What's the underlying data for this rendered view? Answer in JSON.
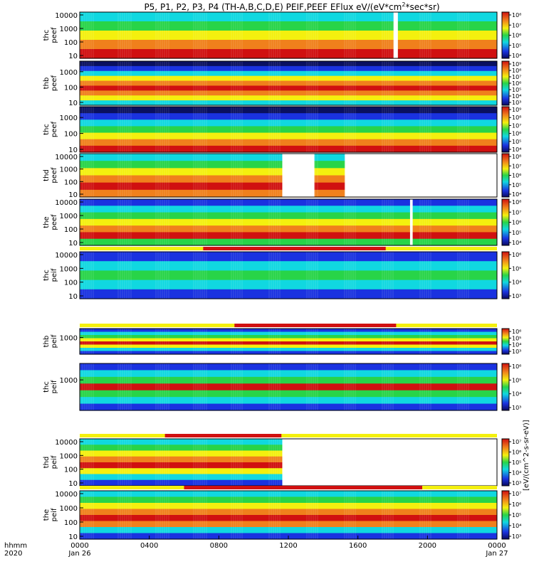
{
  "title": "P5, P1, P2, P3, P4 (TH-A,B,C,D,E) PEIF,PEEF EFlux eV/(eV*cm",
  "title_sup": "2",
  "title_tail": "*sec*sr)",
  "time_axis": {
    "row1_label": "hhmm",
    "row2_label": "2020",
    "ticks": [
      {
        "label": "0000",
        "date": "Jan 26",
        "hour": 0
      },
      {
        "label": "0400",
        "date": "",
        "hour": 4
      },
      {
        "label": "0800",
        "date": "",
        "hour": 8
      },
      {
        "label": "1200",
        "date": "",
        "hour": 12
      },
      {
        "label": "1600",
        "date": "",
        "hour": 16
      },
      {
        "label": "2000",
        "date": "",
        "hour": 20
      },
      {
        "label": "0000",
        "date": "Jan 27",
        "hour": 24
      }
    ]
  },
  "colorbar_label": "[eV/(cm^2-s-sr-eV)]",
  "colors": {
    "red": "#d01010",
    "orange": "#f0801c",
    "yellow": "#f4f00e",
    "green": "#28d448",
    "cyan": "#10d8e0",
    "blue": "#1a32e0",
    "navy": "#0a1060"
  },
  "chart_data": [
    {
      "type": "heatmap",
      "probe": "thc",
      "species": "peef",
      "ylabel": "thc\npeef",
      "y_ticks": [
        "10",
        "100",
        "1000",
        "10000"
      ],
      "y_scale": "log",
      "cbar_ticks": [
        "10⁴",
        "10⁵",
        "10⁶",
        "10⁷",
        "10⁸"
      ],
      "data_gaps": [
        [
          18.05,
          18.3
        ]
      ]
    },
    {
      "type": "heatmap",
      "probe": "thb",
      "species": "peef",
      "ylabel": "thb\npeef",
      "y_ticks": [
        "10",
        "100",
        "1000"
      ],
      "y_scale": "log",
      "cbar_ticks": [
        "10³",
        "10⁴",
        "10⁵",
        "10⁶",
        "10⁷",
        "10⁸",
        "10⁹"
      ]
    },
    {
      "type": "heatmap",
      "probe": "thc",
      "species": "peef",
      "ylabel": "thc\npeef",
      "y_ticks": [
        "10",
        "100",
        "1000"
      ],
      "y_scale": "log",
      "cbar_ticks": [
        "10⁴",
        "10⁵",
        "10⁶",
        "10⁷",
        "10⁸",
        "10⁹"
      ]
    },
    {
      "type": "heatmap",
      "probe": "thd",
      "species": "peef",
      "ylabel": "thd\npeef",
      "y_ticks": [
        "10",
        "100",
        "1000",
        "10000"
      ],
      "y_scale": "log",
      "cbar_ticks": [
        "10⁴",
        "10⁵",
        "10⁶",
        "10⁷",
        "10⁸"
      ],
      "data_gaps": [
        [
          11.65,
          13.5
        ],
        [
          15.25,
          24
        ]
      ]
    },
    {
      "type": "heatmap",
      "probe": "the",
      "species": "peef",
      "ylabel": "the\npeef",
      "y_ticks": [
        "10",
        "100",
        "1000",
        "10000"
      ],
      "y_scale": "log",
      "cbar_ticks": [
        "10⁴",
        "10⁵",
        "10⁶",
        "10⁷",
        "10⁸"
      ],
      "data_gaps": [
        [
          19.0,
          19.15
        ]
      ]
    },
    {
      "type": "heatmap",
      "probe": "thc",
      "species": "peif",
      "ylabel": "thc\npeif",
      "y_ticks": [
        "10",
        "100",
        "1000",
        "10000"
      ],
      "y_scale": "log",
      "cbar_ticks": [
        "10³",
        "10⁴",
        "10⁵",
        "10⁶"
      ],
      "mode_bar": [
        [
          7.1,
          17.6
        ]
      ]
    },
    {
      "type": "heatmap",
      "probe": "thb",
      "species": "peif",
      "ylabel": "thb\npeif",
      "y_ticks": [
        "1000"
      ],
      "y_scale": "log",
      "cbar_ticks": [
        "10³",
        "10⁴",
        "10⁵",
        "10⁶"
      ],
      "mode_bar": [
        [
          8.9,
          18.2
        ]
      ]
    },
    {
      "type": "heatmap",
      "probe": "thc",
      "species": "peif",
      "ylabel": "thc\npeif",
      "y_ticks": [
        "1000"
      ],
      "y_scale": "log",
      "cbar_ticks": [
        "10³",
        "10⁴",
        "10⁵",
        "10⁶"
      ]
    },
    {
      "type": "heatmap",
      "probe": "thd",
      "species": "peif",
      "ylabel": "thd\npeif",
      "y_ticks": [
        "10",
        "100",
        "1000",
        "10000"
      ],
      "y_scale": "log",
      "cbar_ticks": [
        "10³",
        "10⁴",
        "10⁵",
        "10⁶",
        "10⁷"
      ],
      "data_gaps": [
        [
          11.65,
          24
        ]
      ],
      "mode_bar": [
        [
          4.9,
          11.6
        ]
      ]
    },
    {
      "type": "heatmap",
      "probe": "the",
      "species": "peif",
      "ylabel": "the\npeif",
      "y_ticks": [
        "10",
        "100",
        "1000",
        "10000"
      ],
      "y_scale": "log",
      "cbar_ticks": [
        "10³",
        "10⁴",
        "10⁵",
        "10⁶",
        "10⁷"
      ],
      "mode_bar": [
        [
          6.0,
          19.7
        ]
      ]
    }
  ]
}
